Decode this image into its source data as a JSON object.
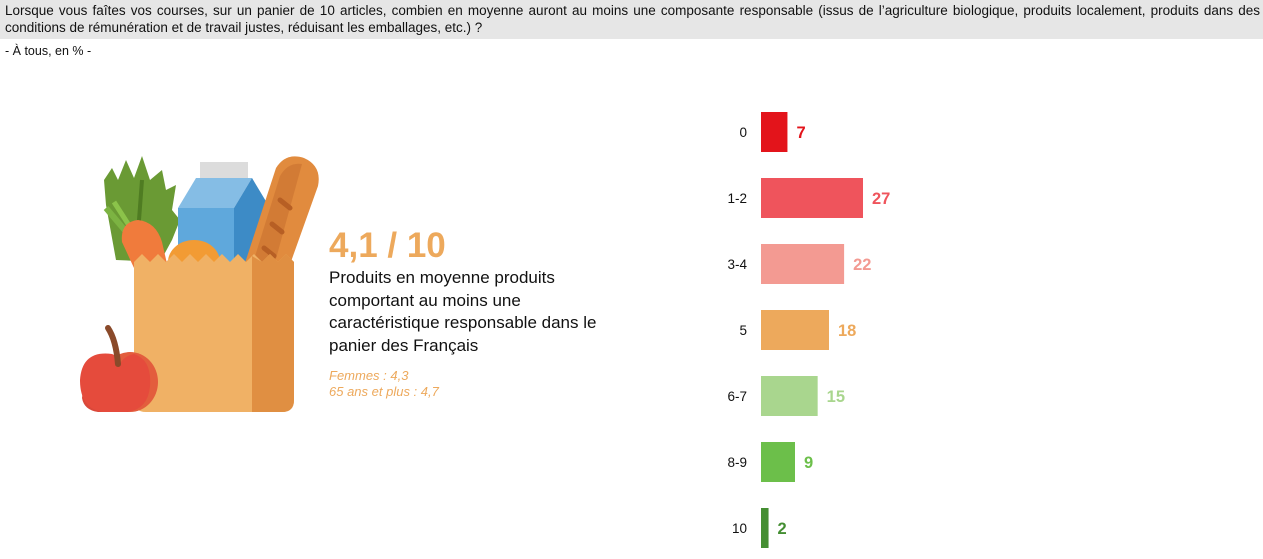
{
  "question": {
    "text": "Lorsque vous faîtes vos courses, sur un panier de 10 articles, combien en moyenne auront au moins une composante responsable (issus de l’agriculture biologique, produits localement, produits dans des conditions de rémunération et de travail justes, réduisant les emballages, etc.) ?",
    "base": "- À tous, en % -"
  },
  "kpi": {
    "value": "4,1 / 10",
    "label": "Produits en moyenne produits comportant au moins une caractéristique responsable dans le panier des Français",
    "detail_women": "Femmes : 4,3",
    "detail_senior": "65 ans et plus : 4,7",
    "accent_color": "#eda95c"
  },
  "illustration": {
    "icon": "grocery-bag-icon",
    "items": [
      "carrot-icon",
      "milk-carton-icon",
      "baguette-icon",
      "apple-icon",
      "orange-icon",
      "leafy-greens-icon"
    ]
  },
  "chart_data": {
    "type": "bar",
    "orientation": "horizontal",
    "title": "",
    "xlabel": "",
    "ylabel": "",
    "unit": "%",
    "xlim": [
      0,
      27
    ],
    "categories": [
      "0",
      "1-2",
      "3-4",
      "5",
      "6-7",
      "8-9",
      "10"
    ],
    "values": [
      7,
      27,
      22,
      18,
      15,
      9,
      2
    ],
    "colors": [
      "#e3141b",
      "#ef545c",
      "#f39a92",
      "#eda95c",
      "#a9d68e",
      "#6cbf4a",
      "#448e32"
    ]
  }
}
